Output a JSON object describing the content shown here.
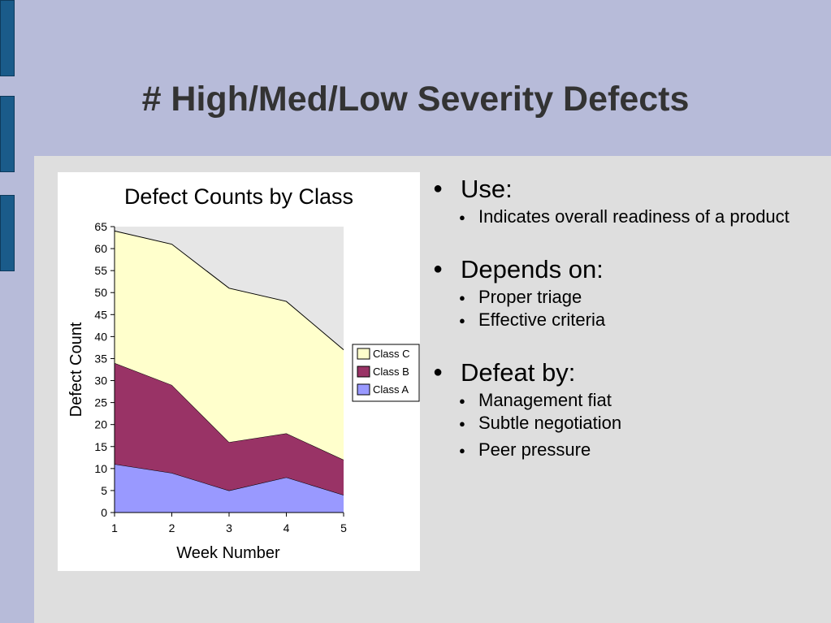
{
  "slide": {
    "title": "# High/Med/Low Severity Defects"
  },
  "bullets": [
    {
      "label": "Use:",
      "subitems": [
        "Indicates overall readiness of a product"
      ]
    },
    {
      "label": "Depends on:",
      "subitems": [
        "Proper triage",
        "Effective criteria"
      ]
    },
    {
      "label": "Defeat by:",
      "subitems": [
        "Management fiat",
        "Subtle negotiation",
        "Peer pressure"
      ]
    }
  ],
  "chart_data": {
    "type": "area",
    "stacked": true,
    "title": "Defect Counts by Class",
    "xlabel": "Week Number",
    "ylabel": "Defect Count",
    "x": [
      1,
      2,
      3,
      4,
      5
    ],
    "ylim": [
      0,
      65
    ],
    "yticks": [
      0,
      5,
      10,
      15,
      20,
      25,
      30,
      35,
      40,
      45,
      50,
      55,
      60,
      65
    ],
    "grid": false,
    "legend_position": "right",
    "series": [
      {
        "name": "Class A",
        "values": [
          11,
          9,
          5,
          8,
          4
        ],
        "color": "#9999ff"
      },
      {
        "name": "Class B",
        "values": [
          23,
          20,
          11,
          10,
          8
        ],
        "color": "#993366"
      },
      {
        "name": "Class C",
        "values": [
          30,
          32,
          35,
          30,
          25
        ],
        "color": "#ffffcc"
      }
    ],
    "legend_order": [
      "Class C",
      "Class B",
      "Class A"
    ],
    "plot_background": "#e6e6e6"
  }
}
